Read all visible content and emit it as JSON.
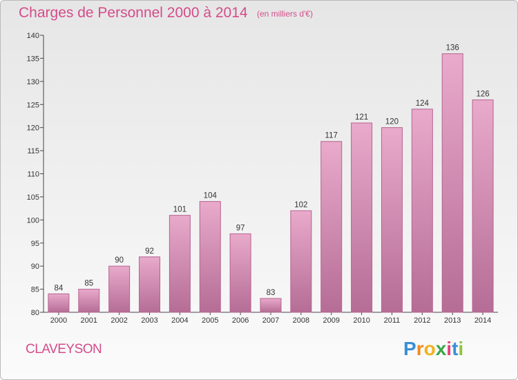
{
  "title": "Charges de Personnel 2000 à 2014",
  "subtitle": "(en milliers d'€)",
  "place": "CLAVEYSON",
  "logo": {
    "letters": [
      "P",
      "r",
      "o",
      "x",
      "i",
      "t",
      "i"
    ],
    "colors": [
      "#3a8fd6",
      "#f28a1e",
      "#f2b11e",
      "#3aa64a",
      "#e8407a",
      "#3a8fd6",
      "#8fc43a"
    ]
  },
  "colors": {
    "accent": "#d44c8a",
    "bar_top": "#e9aacb",
    "bar_bottom": "#b56d96",
    "bar_edge": "#b5638f"
  },
  "chart_data": {
    "type": "bar",
    "categories": [
      "2000",
      "2001",
      "2002",
      "2003",
      "2004",
      "2005",
      "2006",
      "2007",
      "2008",
      "2009",
      "2010",
      "2011",
      "2012",
      "2013",
      "2014"
    ],
    "values": [
      84,
      85,
      90,
      92,
      101,
      104,
      97,
      83,
      102,
      117,
      121,
      120,
      124,
      136,
      126
    ],
    "yticks": [
      80,
      85,
      90,
      95,
      100,
      105,
      110,
      115,
      120,
      125,
      130,
      135,
      140
    ],
    "ylim": [
      80,
      140
    ],
    "grid": false,
    "data_labels": true
  }
}
